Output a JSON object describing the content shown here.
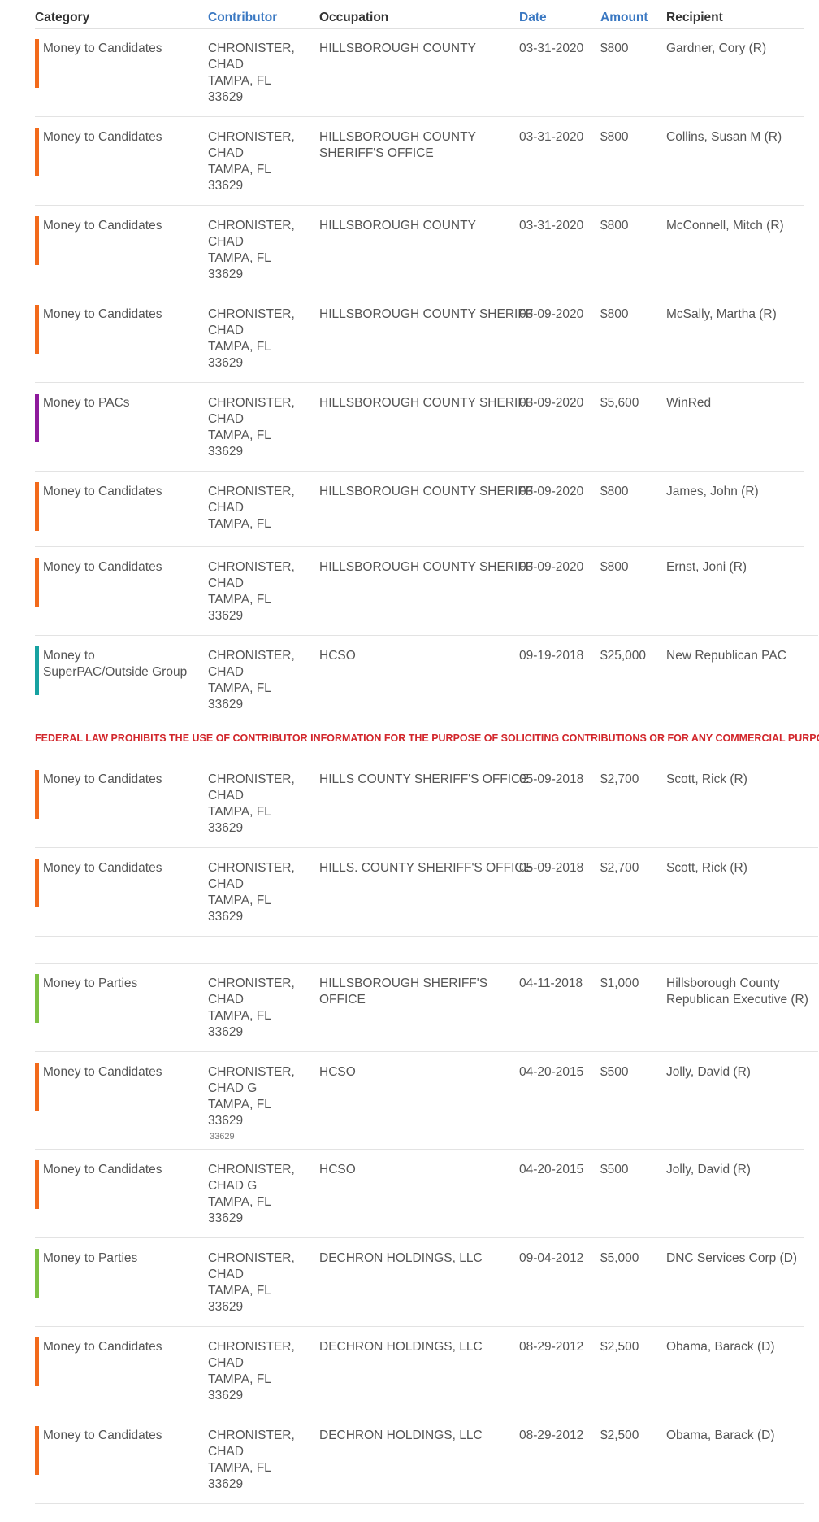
{
  "colors": {
    "candidates": "#f26a1b",
    "pacs": "#8e1a9c",
    "superpac": "#17a2a1",
    "parties": "#7cc142",
    "warning": "#d2272c",
    "link": "#3a78c2"
  },
  "header": {
    "category": "Category",
    "contributor": "Contributor",
    "occupation": "Occupation",
    "date": "Date",
    "amount": "Amount",
    "recipient": "Recipient"
  },
  "warning": "FEDERAL LAW PROHIBITS THE USE OF CONTRIBUTOR INFORMATION FOR THE PURPOSE OF SOLICITING CONTRIBUTIONS OR FOR ANY COMMERCIAL PURPOSE.",
  "stray_text": "33629",
  "rows": [
    {
      "category": "Money to Candidates",
      "category_type": "candidates",
      "contributor": [
        "CHRONISTER,",
        "CHAD",
        "TAMPA, FL",
        "33629"
      ],
      "occupation": [
        "HILLSBOROUGH COUNTY"
      ],
      "date": "03-31-2020",
      "amount": "$800",
      "recipient": [
        "Gardner, Cory (R)"
      ]
    },
    {
      "category": "Money to Candidates",
      "category_type": "candidates",
      "contributor": [
        "CHRONISTER,",
        "CHAD",
        "TAMPA, FL",
        "33629"
      ],
      "occupation": [
        "HILLSBOROUGH COUNTY",
        "SHERIFF'S OFFICE"
      ],
      "date": "03-31-2020",
      "amount": "$800",
      "recipient": [
        "Collins, Susan M (R)"
      ]
    },
    {
      "category": "Money to Candidates",
      "category_type": "candidates",
      "contributor": [
        "CHRONISTER,",
        "CHAD",
        "TAMPA, FL",
        "33629"
      ],
      "occupation": [
        "HILLSBOROUGH COUNTY"
      ],
      "date": "03-31-2020",
      "amount": "$800",
      "recipient": [
        "McConnell, Mitch (R)"
      ]
    },
    {
      "category": "Money to Candidates",
      "category_type": "candidates",
      "contributor": [
        "CHRONISTER,",
        "CHAD",
        "TAMPA, FL",
        "33629"
      ],
      "occupation": [
        "HILLSBOROUGH COUNTY SHERIFF"
      ],
      "date": "03-09-2020",
      "amount": "$800",
      "recipient": [
        "McSally, Martha (R)"
      ]
    },
    {
      "category": "Money to PACs",
      "category_type": "pacs",
      "contributor": [
        "CHRONISTER,",
        "CHAD",
        "TAMPA, FL",
        "33629"
      ],
      "occupation": [
        "HILLSBOROUGH COUNTY SHERIFF"
      ],
      "date": "03-09-2020",
      "amount": "$5,600",
      "recipient": [
        "WinRed"
      ]
    },
    {
      "category": "Money to Candidates",
      "category_type": "candidates",
      "contributor": [
        "CHRONISTER,",
        "CHAD",
        "TAMPA, FL"
      ],
      "occupation": [
        "HILLSBOROUGH COUNTY SHERIFF"
      ],
      "date": "03-09-2020",
      "amount": "$800",
      "recipient": [
        "James, John (R)"
      ]
    },
    {
      "category": "Money to Candidates",
      "category_type": "candidates",
      "contributor": [
        "CHRONISTER,",
        "CHAD",
        "TAMPA, FL",
        "33629"
      ],
      "occupation": [
        "HILLSBOROUGH COUNTY SHERIFF"
      ],
      "date": "03-09-2020",
      "amount": "$800",
      "recipient": [
        "Ernst, Joni (R)"
      ]
    },
    {
      "category": "Money to SuperPAC/Outside Group",
      "category_lines": [
        "Money to",
        "SuperPAC/Outside Group"
      ],
      "category_type": "superpac",
      "contributor": [
        "CHRONISTER,",
        "CHAD",
        "TAMPA, FL",
        "33629"
      ],
      "occupation": [
        "HCSO"
      ],
      "date": "09-19-2018",
      "amount": "$25,000",
      "recipient": [
        "New Republican PAC"
      ]
    },
    {
      "category": "Money to Candidates",
      "category_type": "candidates",
      "contributor": [
        "CHRONISTER,",
        "CHAD",
        "TAMPA, FL",
        "33629"
      ],
      "occupation": [
        "HILLS COUNTY SHERIFF'S OFFICE"
      ],
      "date": "05-09-2018",
      "amount": "$2,700",
      "recipient": [
        "Scott, Rick (R)"
      ]
    },
    {
      "category": "Money to Candidates",
      "category_type": "candidates",
      "contributor": [
        "CHRONISTER,",
        "CHAD",
        "TAMPA, FL",
        "33629"
      ],
      "occupation": [
        "HILLS. COUNTY SHERIFF'S OFFICE"
      ],
      "date": "05-09-2018",
      "amount": "$2,700",
      "recipient": [
        "Scott, Rick (R)"
      ]
    },
    {
      "category": "Money to Parties",
      "category_type": "parties",
      "contributor": [
        "CHRONISTER,",
        "CHAD",
        "TAMPA, FL",
        "33629"
      ],
      "occupation": [
        "HILLSBOROUGH SHERIFF'S",
        "OFFICE"
      ],
      "date": "04-11-2018",
      "amount": "$1,000",
      "recipient": [
        "Hillsborough County",
        "Republican Executive (R)"
      ]
    },
    {
      "category": "Money to Candidates",
      "category_type": "candidates",
      "contributor": [
        "CHRONISTER,",
        "CHAD G",
        "TAMPA, FL",
        "33629"
      ],
      "occupation": [
        "HCSO"
      ],
      "date": "04-20-2015",
      "amount": "$500",
      "recipient": [
        "Jolly, David (R)"
      ]
    },
    {
      "category": "Money to Candidates",
      "category_type": "candidates",
      "contributor": [
        "CHRONISTER,",
        "CHAD G",
        "TAMPA, FL",
        "33629"
      ],
      "occupation": [
        "HCSO"
      ],
      "date": "04-20-2015",
      "amount": "$500",
      "recipient": [
        "Jolly, David (R)"
      ]
    },
    {
      "category": "Money to Parties",
      "category_type": "parties",
      "contributor": [
        "CHRONISTER,",
        "CHAD",
        "TAMPA, FL",
        "33629"
      ],
      "occupation": [
        "DECHRON HOLDINGS, LLC"
      ],
      "date": "09-04-2012",
      "amount": "$5,000",
      "recipient": [
        "DNC Services Corp (D)"
      ]
    },
    {
      "category": "Money to Candidates",
      "category_type": "candidates",
      "contributor": [
        "CHRONISTER,",
        "CHAD",
        "TAMPA, FL",
        "33629"
      ],
      "occupation": [
        "DECHRON HOLDINGS, LLC"
      ],
      "date": "08-29-2012",
      "amount": "$2,500",
      "recipient": [
        "Obama, Barack (D)"
      ]
    },
    {
      "category": "Money to Candidates",
      "category_type": "candidates",
      "contributor": [
        "CHRONISTER,",
        "CHAD",
        "TAMPA, FL",
        "33629"
      ],
      "occupation": [
        "DECHRON HOLDINGS, LLC"
      ],
      "date": "08-29-2012",
      "amount": "$2,500",
      "recipient": [
        "Obama, Barack (D)"
      ]
    }
  ]
}
